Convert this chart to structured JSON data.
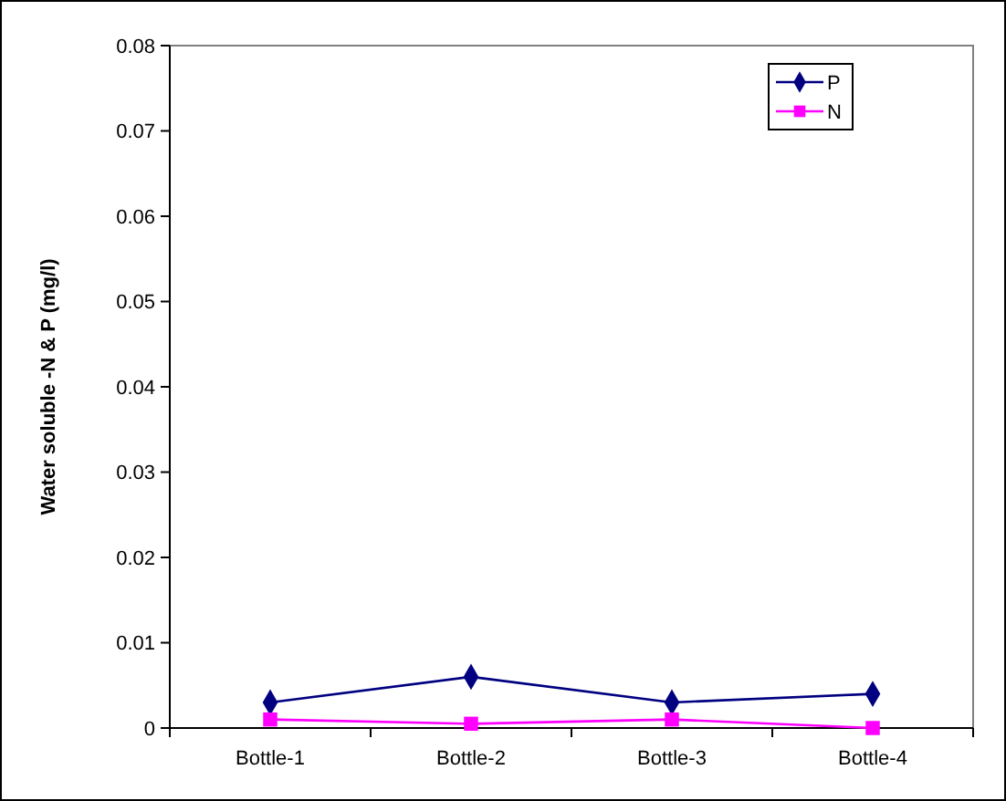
{
  "chart_data": {
    "type": "line",
    "ylabel": "Water soluble -N & P (mg/l)",
    "categories": [
      "Bottle-1",
      "Bottle-2",
      "Bottle-3",
      "Bottle-4"
    ],
    "series": [
      {
        "name": "P",
        "color": "#000080",
        "marker": "diamond",
        "values": [
          0.003,
          0.006,
          0.003,
          0.004
        ]
      },
      {
        "name": "N",
        "color": "#ff00ff",
        "marker": "square",
        "values": [
          0.001,
          0.0005,
          0.001,
          0.0
        ]
      }
    ],
    "ylim": [
      0,
      0.08
    ],
    "yticks": [
      {
        "value": 0,
        "label": "0"
      },
      {
        "value": 0.01,
        "label": "0.01"
      },
      {
        "value": 0.02,
        "label": "0.02"
      },
      {
        "value": 0.03,
        "label": "0.03"
      },
      {
        "value": 0.04,
        "label": "0.04"
      },
      {
        "value": 0.05,
        "label": "0.05"
      },
      {
        "value": 0.06,
        "label": "0.06"
      },
      {
        "value": 0.07,
        "label": "0.07"
      },
      {
        "value": 0.08,
        "label": "0.08"
      }
    ],
    "grid": false,
    "legend": "top right",
    "line_style": "solid"
  }
}
